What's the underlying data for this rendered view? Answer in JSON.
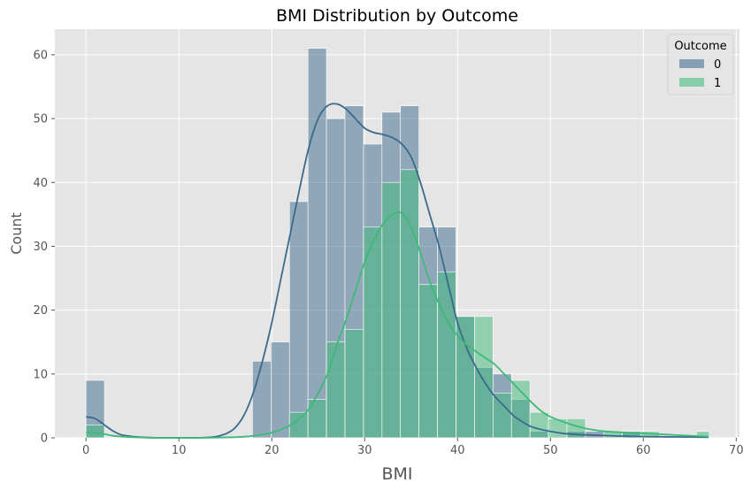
{
  "chart_data": {
    "type": "histogram",
    "title": "BMI Distribution by Outcome",
    "xlabel": "BMI",
    "ylabel": "Count",
    "xlim": [
      -3.35,
      70.35
    ],
    "ylim": [
      0,
      64
    ],
    "xticks": [
      0,
      10,
      20,
      30,
      40,
      50,
      60,
      70
    ],
    "yticks": [
      0,
      10,
      20,
      30,
      40,
      50,
      60
    ],
    "grid": true,
    "legend": {
      "title": "Outcome",
      "placement": "top-right"
    },
    "bin_edges": [
      0,
      1.9914,
      3.9829,
      5.9743,
      7.9657,
      9.9571,
      11.9486,
      13.94,
      15.9314,
      17.9229,
      19.9143,
      21.9057,
      23.8971,
      25.8886,
      27.88,
      29.8714,
      31.8629,
      33.8543,
      35.8457,
      37.8371,
      39.8286,
      41.82,
      43.8114,
      45.8029,
      47.7943,
      49.7857,
      51.7771,
      53.7686,
      55.76,
      57.7514,
      59.7429,
      61.7343,
      63.7257,
      65.7171,
      67.1
    ],
    "series": [
      {
        "name": "0",
        "color": "#3b6a8d",
        "counts": [
          9,
          0,
          0,
          0,
          0,
          0,
          0,
          0,
          0,
          12,
          15,
          37,
          61,
          50,
          52,
          46,
          51,
          52,
          33,
          33,
          19,
          11,
          10,
          6,
          1,
          0,
          1,
          1,
          0,
          1,
          0,
          0,
          0,
          0
        ],
        "kde_x": [
          0,
          1,
          2,
          3,
          4,
          6,
          8,
          10,
          12,
          14,
          15,
          16,
          17,
          18,
          19,
          20,
          21,
          22,
          23,
          24,
          25,
          26,
          27,
          28,
          29,
          30,
          31,
          32,
          33,
          34,
          35,
          36,
          37,
          38,
          39,
          40,
          41,
          42,
          43,
          44,
          45,
          46,
          47,
          48,
          50,
          52,
          55,
          60,
          67
        ],
        "kde_y": [
          3.3,
          3.0,
          2.0,
          1.0,
          0.4,
          0.1,
          0.0,
          0.0,
          0.0,
          0.2,
          0.6,
          1.5,
          3.5,
          7.0,
          12.0,
          18.0,
          25.0,
          32.0,
          39.0,
          45.5,
          50.0,
          52.0,
          52.3,
          51.5,
          50.0,
          48.5,
          47.8,
          47.5,
          47.0,
          46.0,
          44.0,
          40.0,
          35.0,
          30.0,
          24.0,
          18.0,
          14.0,
          11.0,
          8.5,
          6.5,
          5.0,
          3.5,
          2.5,
          1.7,
          1.0,
          0.6,
          0.4,
          0.2,
          0.1
        ]
      },
      {
        "name": "1",
        "color": "#3db979",
        "counts": [
          2,
          0,
          0,
          0,
          0,
          0,
          0,
          0,
          0,
          0,
          0,
          4,
          6,
          15,
          17,
          33,
          40,
          42,
          24,
          26,
          19,
          19,
          7,
          9,
          4,
          3,
          3,
          0,
          1,
          1,
          1,
          0,
          0,
          1
        ],
        "kde_x": [
          0,
          1,
          2,
          3,
          5,
          8,
          12,
          16,
          18,
          20,
          21,
          22,
          23,
          24,
          25,
          26,
          27,
          28,
          29,
          30,
          31,
          32,
          33,
          34,
          35,
          36,
          37,
          38,
          39,
          40,
          41,
          42,
          43,
          44,
          45,
          46,
          47,
          48,
          49,
          50,
          52,
          54,
          56,
          60,
          64,
          67
        ],
        "kde_y": [
          0.8,
          0.8,
          0.6,
          0.3,
          0.1,
          0.0,
          0.0,
          0.1,
          0.3,
          0.8,
          1.3,
          2.0,
          3.0,
          4.5,
          7.0,
          10.0,
          14.5,
          18.5,
          23.0,
          27.5,
          31.0,
          33.5,
          35.0,
          35.2,
          33.0,
          29.0,
          24.5,
          21.0,
          18.0,
          16.0,
          14.5,
          13.5,
          12.5,
          11.5,
          10.0,
          8.5,
          7.0,
          5.5,
          4.2,
          3.3,
          2.2,
          1.4,
          1.0,
          0.7,
          0.4,
          0.2
        ]
      }
    ]
  }
}
